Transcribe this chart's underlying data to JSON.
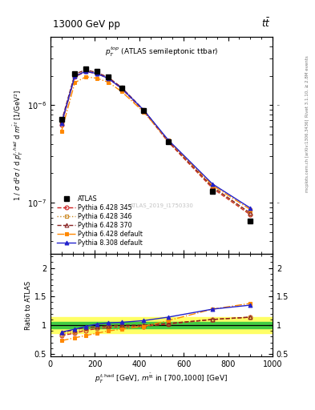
{
  "title_left": "13000 GeV pp",
  "title_right": "t$\\bar{\\mathrm{t}}$",
  "panel_title": "$p_T^{\\mathrm{top}}$ (ATLAS semileptonic t$\\bar{\\mathrm{t}}$bar)",
  "watermark": "ATLAS_2019_I1750330",
  "right_label_top": "Rivet 3.1.10, ≥ 2.8M events",
  "right_label_bot": "mcplots.cern.ch [arXiv:1306.3436]",
  "xlabel": "$p_T^{t,\\mathrm{had}}$ [GeV], $m^{\\bar{\\mathrm{t}}\\mathrm{t}}$ in [700,1000] [GeV]",
  "ylabel_main": "1 / σ d²σ / d p$_T^{t,\\mathrm{had}}$ d m$^{\\bar{\\mathrm{t}}\\mathrm{t}}$ [1/GeV²]",
  "ylabel_ratio": "Ratio to ATLAS",
  "xlim": [
    0,
    1000
  ],
  "ylim_main": [
    3e-08,
    5e-06
  ],
  "ylim_ratio": [
    0.45,
    2.25
  ],
  "x_data": [
    50,
    110,
    160,
    210,
    260,
    320,
    420,
    530,
    730,
    900
  ],
  "atlas_y": [
    7.2e-07,
    2.1e-06,
    2.35e-06,
    2.2e-06,
    1.95e-06,
    1.5e-06,
    8.8e-07,
    4.2e-07,
    1.3e-07,
    6.5e-08
  ],
  "py6_345_y": [
    6.3e-07,
    1.95e-06,
    2.2e-06,
    2.1e-06,
    1.88e-06,
    1.48e-06,
    8.7e-07,
    4.2e-07,
    1.4e-07,
    7.5e-08
  ],
  "py6_346_y": [
    6.5e-07,
    2e-06,
    2.25e-06,
    2.12e-06,
    1.9e-06,
    1.5e-06,
    8.8e-07,
    4.25e-07,
    1.42e-07,
    7.6e-08
  ],
  "py6_370_y": [
    6.8e-07,
    2.08e-06,
    2.3e-06,
    2.15e-06,
    1.93e-06,
    1.52e-06,
    8.9e-07,
    4.3e-07,
    1.45e-07,
    7.8e-08
  ],
  "py6_def_y": [
    5.4e-07,
    1.7e-06,
    1.95e-06,
    1.88e-06,
    1.72e-06,
    1.38e-06,
    8.5e-07,
    4.35e-07,
    1.5e-07,
    8.5e-08
  ],
  "py8_def_y": [
    6.5e-07,
    1.98e-06,
    2.22e-06,
    2.1e-06,
    1.88e-06,
    1.49e-06,
    8.9e-07,
    4.4e-07,
    1.55e-07,
    8.8e-08
  ],
  "ratio_py6_345": [
    0.82,
    0.86,
    0.91,
    0.94,
    0.96,
    0.97,
    0.98,
    1.02,
    1.1,
    1.14
  ],
  "ratio_py6_346": [
    0.84,
    0.88,
    0.93,
    0.95,
    0.97,
    0.97,
    0.99,
    1.03,
    1.1,
    1.14
  ],
  "ratio_py6_370": [
    0.87,
    0.92,
    0.96,
    0.97,
    0.99,
    1.0,
    1.0,
    1.03,
    1.1,
    1.14
  ],
  "ratio_py6_def": [
    0.73,
    0.78,
    0.82,
    0.86,
    0.9,
    0.93,
    0.98,
    1.08,
    1.28,
    1.38
  ],
  "ratio_py8_def": [
    0.88,
    0.93,
    0.98,
    1.02,
    1.04,
    1.05,
    1.08,
    1.14,
    1.28,
    1.35
  ],
  "green_band": 0.05,
  "yellow_band": 0.14,
  "color_atlas": "#000000",
  "color_py6_345": "#cc2222",
  "color_py6_346": "#cc8822",
  "color_py6_370": "#882222",
  "color_py6_def": "#ff8800",
  "color_py8_def": "#2222cc",
  "legend_entries": [
    "ATLAS",
    "Pythia 6.428 345",
    "Pythia 6.428 346",
    "Pythia 6.428 370",
    "Pythia 6.428 default",
    "Pythia 8.308 default"
  ]
}
